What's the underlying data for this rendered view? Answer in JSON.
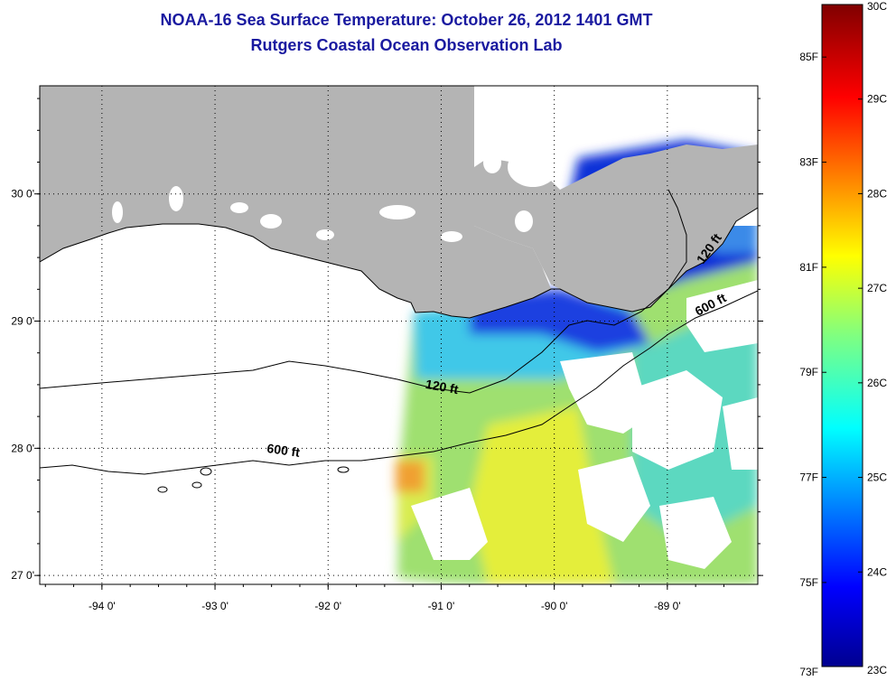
{
  "title": {
    "line1": "NOAA-16 Sea Surface Temperature:  October 26, 2012 1401 GMT",
    "line2": "Rutgers Coastal Ocean Observation Lab"
  },
  "map": {
    "lon_range": [
      -94.55,
      -88.2
    ],
    "lat_range": [
      26.93,
      30.85
    ],
    "lon_ticks": [
      {
        "value": -94,
        "label": "-94 0'"
      },
      {
        "value": -93,
        "label": "-93 0'"
      },
      {
        "value": -92,
        "label": "-92 0'"
      },
      {
        "value": -91,
        "label": "-91 0'"
      },
      {
        "value": -90,
        "label": "-90 0'"
      },
      {
        "value": -89,
        "label": "-89 0'"
      }
    ],
    "lat_ticks": [
      {
        "value": 30,
        "label": "30 0'"
      },
      {
        "value": 29,
        "label": "29 0'"
      },
      {
        "value": 28,
        "label": "28 0'"
      },
      {
        "value": 27,
        "label": "27 0'"
      }
    ],
    "contour_labels": [
      {
        "text": "120 ft",
        "lon": -91.0,
        "lat": 28.45
      },
      {
        "text": "600 ft",
        "lon": -92.4,
        "lat": 27.95
      },
      {
        "text": "600 ft",
        "lon": -88.6,
        "lat": 29.1
      },
      {
        "text": "120 ft",
        "lon": -88.6,
        "lat": 29.55
      }
    ],
    "land_color": "#b4b4b4",
    "grid": true
  },
  "colorbar": {
    "min_c": 23,
    "max_c": 30,
    "celsius_labels": [
      {
        "value": 30,
        "label": "30C"
      },
      {
        "value": 29,
        "label": "29C"
      },
      {
        "value": 28,
        "label": "28C"
      },
      {
        "value": 27,
        "label": "27C"
      },
      {
        "value": 26,
        "label": "26C"
      },
      {
        "value": 25,
        "label": "25C"
      },
      {
        "value": 24,
        "label": "24C"
      },
      {
        "value": 23,
        "label": "23C"
      }
    ],
    "fahrenheit_labels": [
      {
        "value": 85,
        "label": "85F"
      },
      {
        "value": 83,
        "label": "83F"
      },
      {
        "value": 81,
        "label": "81F"
      },
      {
        "value": 79,
        "label": "79F"
      },
      {
        "value": 77,
        "label": "77F"
      },
      {
        "value": 75,
        "label": "75F"
      },
      {
        "value": 73,
        "label": "73F"
      }
    ]
  }
}
